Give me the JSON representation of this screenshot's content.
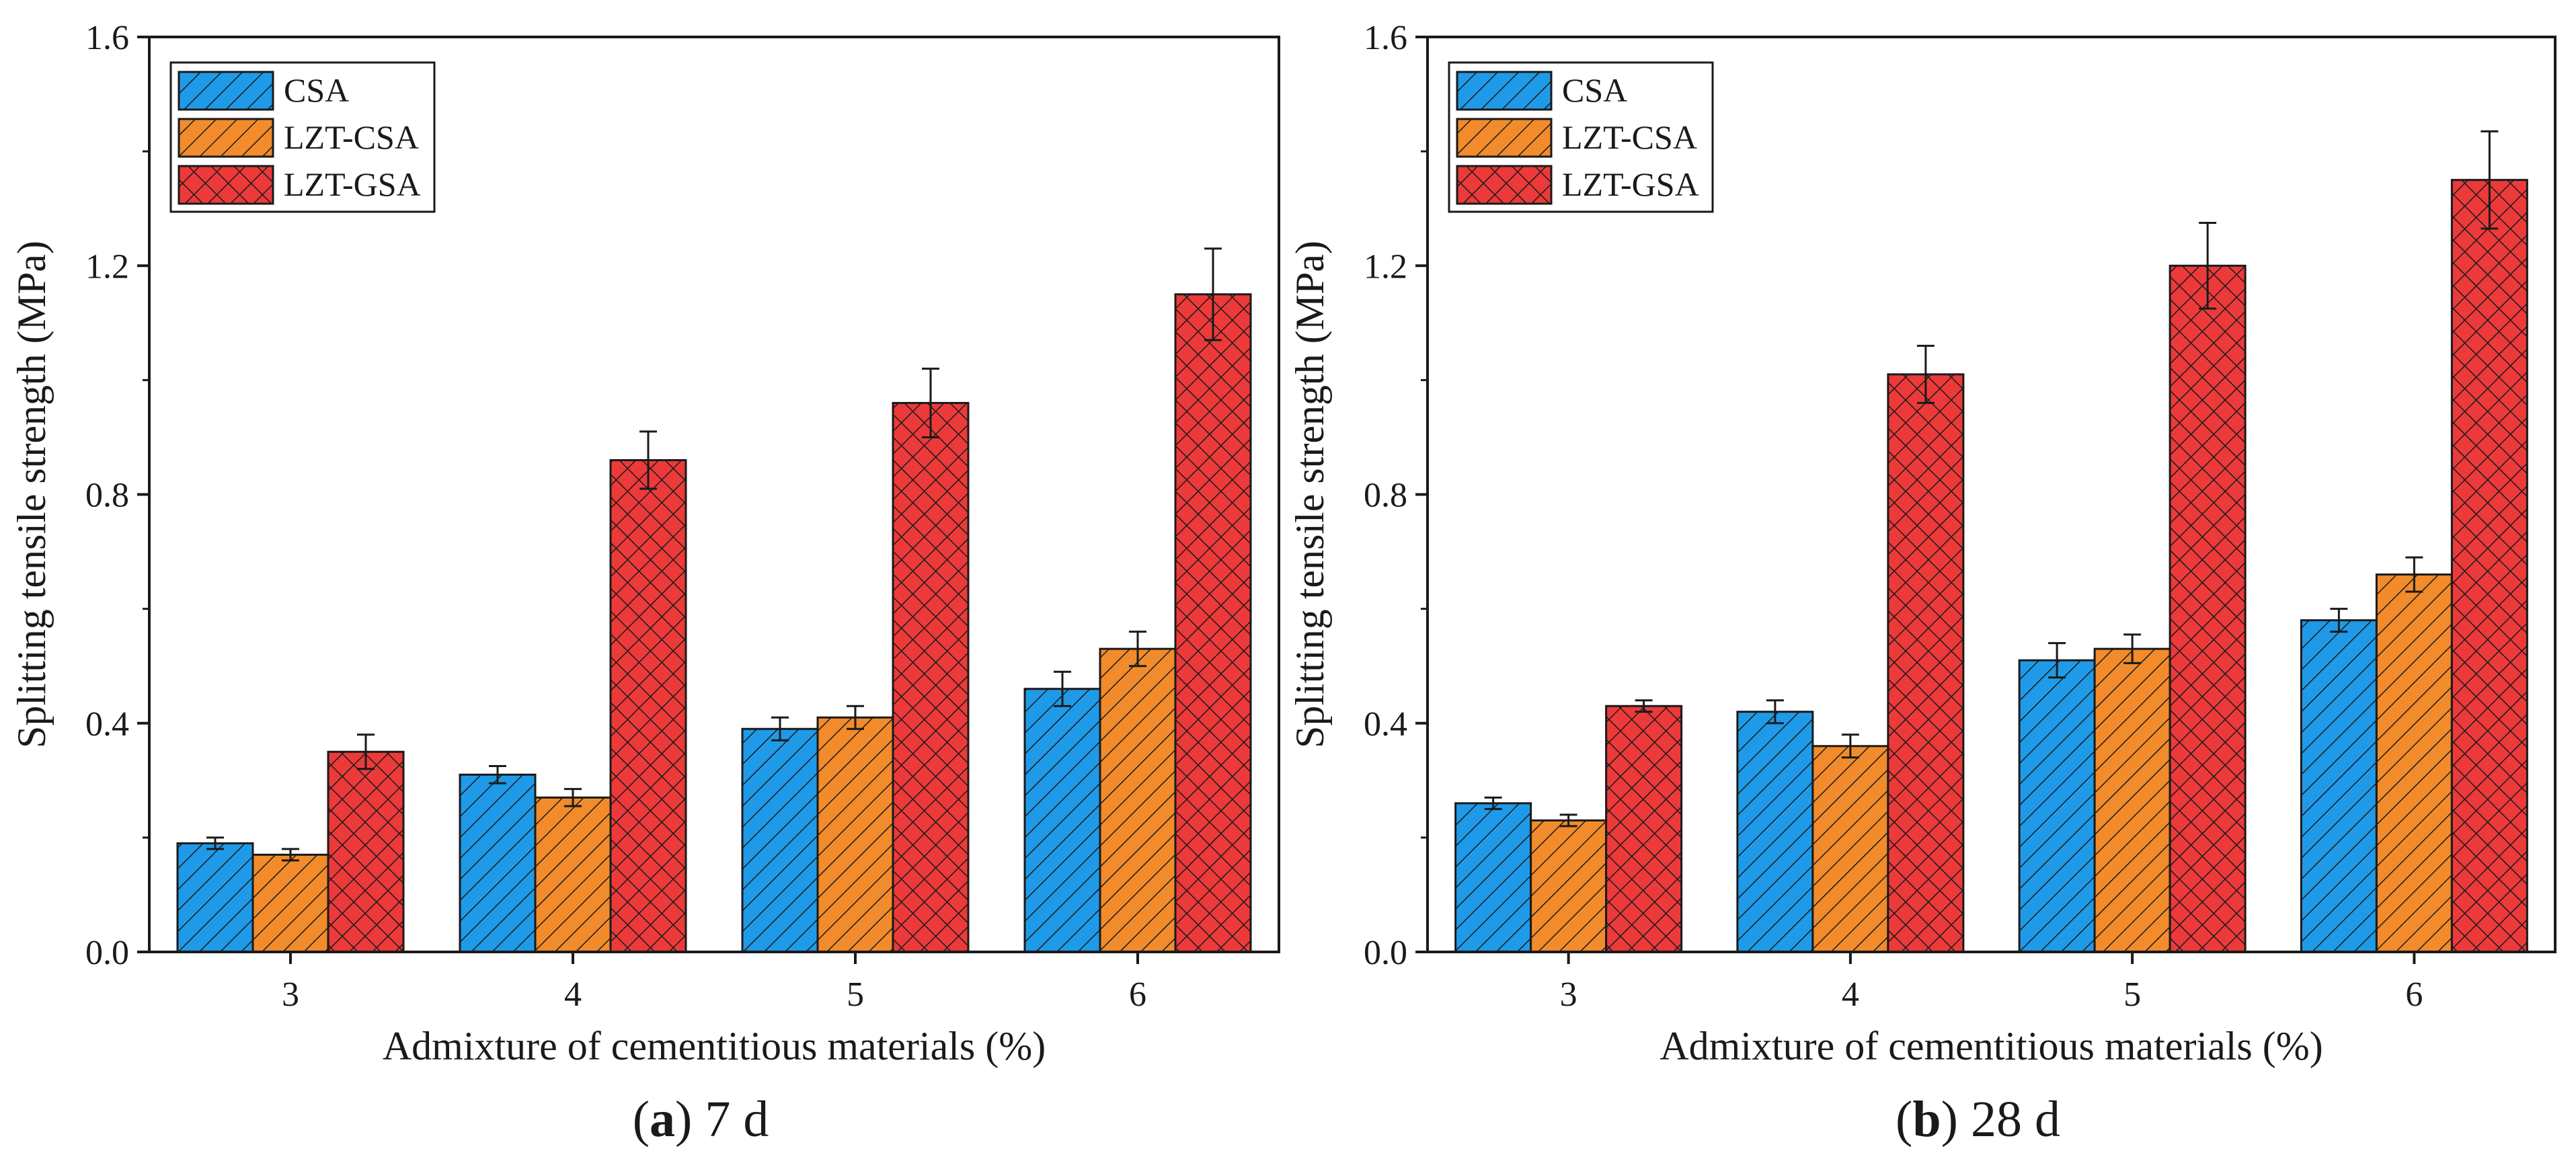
{
  "chart_data": [
    {
      "type": "bar",
      "id": "a",
      "caption_letter": "a",
      "caption_text": "7 d",
      "xlabel": "Admixture of cementitious materials (%)",
      "ylabel": "Splitting tensile strength (MPa)",
      "ylim": [
        0,
        1.6
      ],
      "yticks": [
        "0.0",
        "0.4",
        "0.8",
        "1.2",
        "1.6"
      ],
      "categories": [
        "3",
        "4",
        "5",
        "6"
      ],
      "legend_position": "top-left",
      "series": [
        {
          "name": "CSA",
          "color": "#1f9ae8",
          "hatch": "diagonal",
          "values": [
            0.19,
            0.31,
            0.39,
            0.46
          ],
          "errors": [
            0.01,
            0.015,
            0.02,
            0.03
          ]
        },
        {
          "name": "LZT-CSA",
          "color": "#f28b2b",
          "hatch": "diagonal",
          "values": [
            0.17,
            0.27,
            0.41,
            0.53
          ],
          "errors": [
            0.01,
            0.015,
            0.02,
            0.03
          ]
        },
        {
          "name": "LZT-GSA",
          "color": "#ec3a3a",
          "hatch": "cross",
          "values": [
            0.35,
            0.86,
            0.96,
            1.15
          ],
          "errors": [
            0.03,
            0.05,
            0.06,
            0.08
          ]
        }
      ]
    },
    {
      "type": "bar",
      "id": "b",
      "caption_letter": "b",
      "caption_text": "28 d",
      "xlabel": "Admixture of cementitious materials (%)",
      "ylabel": "Splitting tensile strength (MPa)",
      "ylim": [
        0,
        1.6
      ],
      "yticks": [
        "0.0",
        "0.4",
        "0.8",
        "1.2",
        "1.6"
      ],
      "categories": [
        "3",
        "4",
        "5",
        "6"
      ],
      "legend_position": "top-left",
      "series": [
        {
          "name": "CSA",
          "color": "#1f9ae8",
          "hatch": "diagonal",
          "values": [
            0.26,
            0.42,
            0.51,
            0.58
          ],
          "errors": [
            0.01,
            0.02,
            0.03,
            0.02
          ]
        },
        {
          "name": "LZT-CSA",
          "color": "#f28b2b",
          "hatch": "diagonal",
          "values": [
            0.23,
            0.36,
            0.53,
            0.66
          ],
          "errors": [
            0.01,
            0.02,
            0.025,
            0.03
          ]
        },
        {
          "name": "LZT-GSA",
          "color": "#ec3a3a",
          "hatch": "cross",
          "values": [
            0.43,
            1.01,
            1.2,
            1.35
          ],
          "errors": [
            0.01,
            0.05,
            0.075,
            0.085
          ]
        }
      ]
    }
  ]
}
